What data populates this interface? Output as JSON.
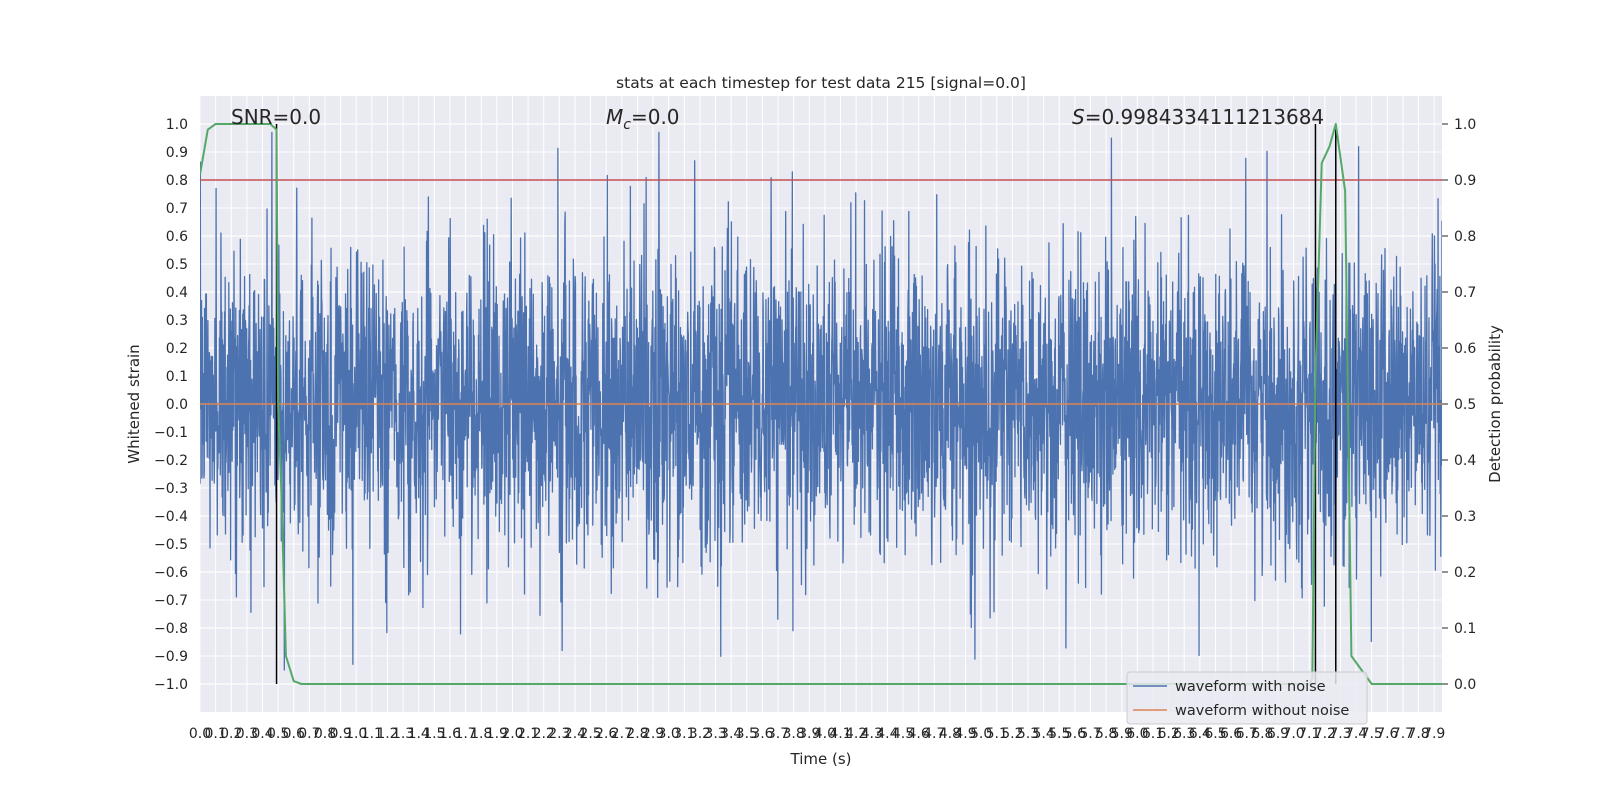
{
  "chart_data": {
    "type": "line",
    "title": "stats at each timestep for test data 215 [signal=0.0]",
    "xlabel": "Time (s)",
    "ylabel": "Whitened strain",
    "y2label": "Detection probability",
    "xlim": [
      0.0,
      7.95
    ],
    "ylim": [
      -1.1,
      1.1
    ],
    "y2lim": [
      -0.05,
      1.05
    ],
    "x_ticks": [
      "0.0",
      "0.1",
      "0.2",
      "0.3",
      "0.4",
      "0.5",
      "0.6",
      "0.7",
      "0.8",
      "0.9",
      "1.0",
      "1.1",
      "1.2",
      "1.3",
      "1.4",
      "1.5",
      "1.6",
      "1.7",
      "1.8",
      "1.9",
      "2.0",
      "2.1",
      "2.2",
      "2.3",
      "2.4",
      "2.5",
      "2.6",
      "2.7",
      "2.8",
      "2.9",
      "3.0",
      "3.1",
      "3.2",
      "3.3",
      "3.4",
      "3.5",
      "3.6",
      "3.7",
      "3.8",
      "3.9",
      "4.0",
      "4.1",
      "4.2",
      "4.3",
      "4.4",
      "4.5",
      "4.6",
      "4.7",
      "4.8",
      "4.9",
      "5.0",
      "5.1",
      "5.2",
      "5.3",
      "5.4",
      "5.5",
      "5.6",
      "5.7",
      "5.8",
      "5.9",
      "6.0",
      "6.1",
      "6.2",
      "6.3",
      "6.4",
      "6.5",
      "6.6",
      "6.7",
      "6.8",
      "6.9",
      "7.0",
      "7.1",
      "7.2",
      "7.3",
      "7.4",
      "7.5",
      "7.6",
      "7.7",
      "7.8",
      "7.9"
    ],
    "y_ticks": [
      "1.0",
      "0.9",
      "0.8",
      "0.7",
      "0.6",
      "0.5",
      "0.4",
      "0.3",
      "0.2",
      "0.1",
      "0.0",
      "−0.1",
      "−0.2",
      "−0.3",
      "−0.4",
      "−0.5",
      "−0.6",
      "−0.7",
      "−0.8",
      "−0.9",
      "−1.0"
    ],
    "y2_ticks": [
      "1.0",
      "0.9",
      "0.8",
      "0.7",
      "0.6",
      "0.5",
      "0.4",
      "0.3",
      "0.2",
      "0.1",
      "0.0"
    ],
    "annotations": {
      "snr": "SNR=0.0",
      "mc_symbol": "M",
      "mc_sub": "c",
      "mc_value": "=0.0",
      "s_symbol": "S",
      "s_value": "=0.9984334111213684"
    },
    "threshold": 0.9,
    "vertical_lines_x": [
      0.49,
      7.14,
      7.27
    ],
    "legend": {
      "placement": "lower right",
      "entries": [
        "waveform with noise",
        "waveform without noise"
      ]
    },
    "colors": {
      "noise": "#4c72b0",
      "clean": "#dd8452",
      "probability": "#55a868",
      "threshold": "#c44e52",
      "vline": "#000000",
      "plot_bg": "#eaeaf2",
      "grid": "#ffffff"
    },
    "series": [
      {
        "name": "waveform with noise",
        "style": "dense noise, approx. Gaussian",
        "std": 0.27,
        "range": [
          -0.95,
          0.97
        ],
        "n_points": 4096
      },
      {
        "name": "waveform without noise",
        "x": [
          0.0,
          7.95
        ],
        "y": [
          0.0,
          0.0
        ]
      },
      {
        "axis": "right",
        "x": [
          0.0,
          0.05,
          0.1,
          0.15,
          0.2,
          0.25,
          0.3,
          0.35,
          0.4,
          0.45,
          0.49,
          0.5,
          0.52,
          0.55,
          0.6,
          0.65,
          0.7,
          1.0,
          2.0,
          3.0,
          3.9,
          4.0,
          5.0,
          5.5,
          6.0,
          7.0,
          7.1,
          7.12,
          7.14,
          7.18,
          7.23,
          7.27,
          7.33,
          7.37,
          7.5,
          7.95
        ],
        "y": [
          0.91,
          0.99,
          1.0,
          1.0,
          1.0,
          1.0,
          1.0,
          1.0,
          1.0,
          1.0,
          0.99,
          0.5,
          0.35,
          0.05,
          0.005,
          0.0,
          0.0,
          0.0,
          0.0,
          0.0,
          0.0,
          0.0,
          0.0,
          0.0,
          0.0,
          0.0,
          0.0,
          0.01,
          0.55,
          0.93,
          0.96,
          1.0,
          0.88,
          0.05,
          0.0,
          0.0
        ]
      }
    ]
  }
}
